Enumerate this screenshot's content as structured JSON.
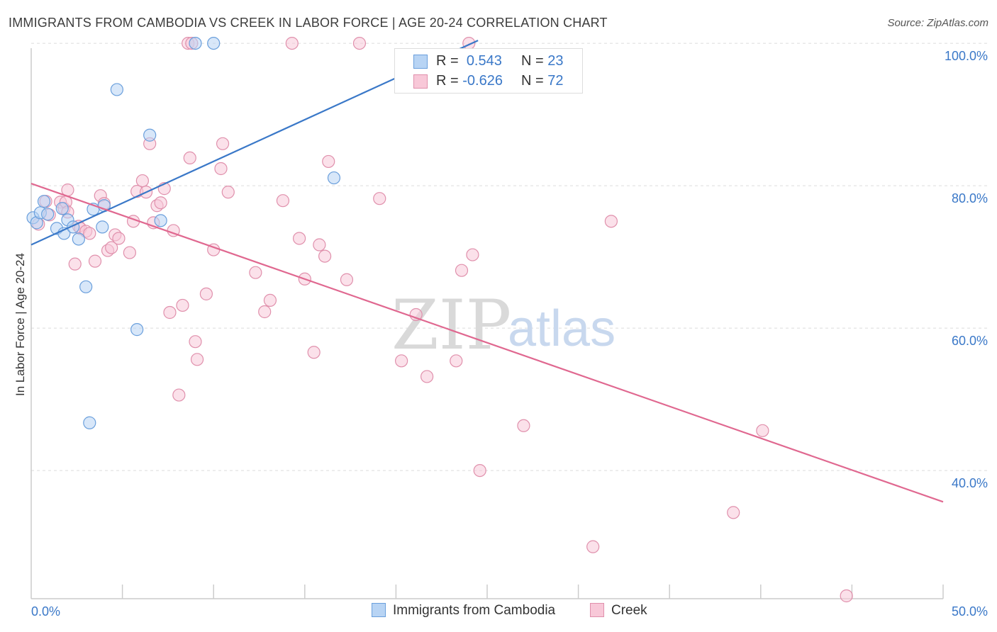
{
  "title": "IMMIGRANTS FROM CAMBODIA VS CREEK IN LABOR FORCE | AGE 20-24 CORRELATION CHART",
  "source": "Source: ZipAtlas.com",
  "watermark": {
    "zip": "ZIP",
    "atlas": "atlas"
  },
  "legend": {
    "r_label": "R =",
    "n_label": "N =",
    "items": [
      {
        "name": "Immigrants from Cambodia",
        "r": "0.543",
        "n": "23",
        "fill": "#b8d4f4",
        "stroke": "#6a9fdc"
      },
      {
        "name": "Creek",
        "r": "-0.626",
        "n": "72",
        "fill": "#f8c8d8",
        "stroke": "#e090ac"
      }
    ]
  },
  "chart_data": {
    "type": "scatter",
    "title": "IMMIGRANTS FROM CAMBODIA VS CREEK IN LABOR FORCE | AGE 20-24 CORRELATION CHART",
    "xlabel": "",
    "ylabel": "In Labor Force | Age 20-24",
    "xlim": [
      0,
      50
    ],
    "ylim": [
      22,
      102
    ],
    "x_tick_labels": [
      "0.0%",
      "50.0%"
    ],
    "y_ticks": [
      {
        "value": 100,
        "label": "100.0%"
      },
      {
        "value": 80,
        "label": "80.0%"
      },
      {
        "value": 60,
        "label": "60.0%"
      },
      {
        "value": 40,
        "label": "40.0%"
      }
    ],
    "series": [
      {
        "name": "Immigrants from Cambodia",
        "color": "#3a78c8",
        "point_fill": "#b8d4f4",
        "point_stroke": "#6a9fdc",
        "trendline": {
          "x": [
            0,
            24.5
          ],
          "y": [
            71.7,
            100.4
          ]
        },
        "points": [
          {
            "x": 0.1,
            "y": 75.5
          },
          {
            "x": 0.3,
            "y": 74.8
          },
          {
            "x": 0.5,
            "y": 76.2
          },
          {
            "x": 0.7,
            "y": 77.8
          },
          {
            "x": 0.9,
            "y": 76.0
          },
          {
            "x": 1.4,
            "y": 74.0
          },
          {
            "x": 1.7,
            "y": 76.8
          },
          {
            "x": 1.8,
            "y": 73.3
          },
          {
            "x": 2.0,
            "y": 75.2
          },
          {
            "x": 2.3,
            "y": 74.2
          },
          {
            "x": 2.6,
            "y": 72.5
          },
          {
            "x": 3.0,
            "y": 65.8
          },
          {
            "x": 3.2,
            "y": 46.7
          },
          {
            "x": 3.4,
            "y": 76.7
          },
          {
            "x": 3.9,
            "y": 74.2
          },
          {
            "x": 4.0,
            "y": 77.2
          },
          {
            "x": 4.7,
            "y": 93.5
          },
          {
            "x": 5.8,
            "y": 59.8
          },
          {
            "x": 6.5,
            "y": 87.1
          },
          {
            "x": 7.1,
            "y": 75.1
          },
          {
            "x": 9.0,
            "y": 100.0
          },
          {
            "x": 10.0,
            "y": 100.0
          },
          {
            "x": 16.6,
            "y": 81.1
          }
        ]
      },
      {
        "name": "Creek",
        "color": "#e06890",
        "point_fill": "#f8c8d8",
        "point_stroke": "#e090ac",
        "trendline": {
          "x": [
            0,
            50
          ],
          "y": [
            80.3,
            35.6
          ]
        },
        "points": [
          {
            "x": 0.4,
            "y": 74.6
          },
          {
            "x": 0.8,
            "y": 77.8
          },
          {
            "x": 1.0,
            "y": 75.9
          },
          {
            "x": 1.6,
            "y": 77.7
          },
          {
            "x": 1.8,
            "y": 76.8
          },
          {
            "x": 1.9,
            "y": 77.7
          },
          {
            "x": 2.0,
            "y": 76.3
          },
          {
            "x": 2.0,
            "y": 79.4
          },
          {
            "x": 2.4,
            "y": 69.0
          },
          {
            "x": 2.6,
            "y": 74.3
          },
          {
            "x": 2.7,
            "y": 74.0
          },
          {
            "x": 3.0,
            "y": 73.6
          },
          {
            "x": 3.2,
            "y": 73.3
          },
          {
            "x": 3.5,
            "y": 69.4
          },
          {
            "x": 3.8,
            "y": 78.6
          },
          {
            "x": 4.0,
            "y": 77.5
          },
          {
            "x": 4.2,
            "y": 70.9
          },
          {
            "x": 4.4,
            "y": 71.3
          },
          {
            "x": 4.6,
            "y": 73.1
          },
          {
            "x": 4.8,
            "y": 72.6
          },
          {
            "x": 5.4,
            "y": 70.6
          },
          {
            "x": 5.6,
            "y": 75.0
          },
          {
            "x": 5.8,
            "y": 79.2
          },
          {
            "x": 6.1,
            "y": 80.7
          },
          {
            "x": 6.3,
            "y": 79.1
          },
          {
            "x": 6.5,
            "y": 85.9
          },
          {
            "x": 6.7,
            "y": 74.8
          },
          {
            "x": 6.9,
            "y": 77.2
          },
          {
            "x": 7.1,
            "y": 77.6
          },
          {
            "x": 7.3,
            "y": 79.6
          },
          {
            "x": 7.6,
            "y": 62.2
          },
          {
            "x": 7.8,
            "y": 73.7
          },
          {
            "x": 8.1,
            "y": 50.6
          },
          {
            "x": 8.3,
            "y": 63.2
          },
          {
            "x": 8.6,
            "y": 100.0
          },
          {
            "x": 8.7,
            "y": 83.9
          },
          {
            "x": 8.8,
            "y": 100.0
          },
          {
            "x": 9.0,
            "y": 58.1
          },
          {
            "x": 9.1,
            "y": 55.6
          },
          {
            "x": 9.6,
            "y": 64.8
          },
          {
            "x": 10.0,
            "y": 71.0
          },
          {
            "x": 10.4,
            "y": 82.4
          },
          {
            "x": 10.5,
            "y": 85.9
          },
          {
            "x": 10.8,
            "y": 79.1
          },
          {
            "x": 12.3,
            "y": 67.8
          },
          {
            "x": 12.8,
            "y": 62.3
          },
          {
            "x": 13.1,
            "y": 63.9
          },
          {
            "x": 13.8,
            "y": 77.9
          },
          {
            "x": 14.3,
            "y": 100.0
          },
          {
            "x": 14.7,
            "y": 72.6
          },
          {
            "x": 15.0,
            "y": 66.9
          },
          {
            "x": 15.5,
            "y": 56.6
          },
          {
            "x": 15.8,
            "y": 71.7
          },
          {
            "x": 16.1,
            "y": 70.1
          },
          {
            "x": 16.3,
            "y": 83.4
          },
          {
            "x": 17.3,
            "y": 66.8
          },
          {
            "x": 18.0,
            "y": 100.0
          },
          {
            "x": 19.1,
            "y": 78.2
          },
          {
            "x": 20.3,
            "y": 55.4
          },
          {
            "x": 21.1,
            "y": 61.9
          },
          {
            "x": 21.7,
            "y": 53.2
          },
          {
            "x": 23.3,
            "y": 55.4
          },
          {
            "x": 23.6,
            "y": 68.1
          },
          {
            "x": 24.2,
            "y": 70.3
          },
          {
            "x": 24.6,
            "y": 40.0
          },
          {
            "x": 27.0,
            "y": 46.3
          },
          {
            "x": 30.8,
            "y": 29.3
          },
          {
            "x": 31.8,
            "y": 75.0
          },
          {
            "x": 38.5,
            "y": 34.1
          },
          {
            "x": 40.1,
            "y": 45.6
          },
          {
            "x": 44.7,
            "y": 22.4
          },
          {
            "x": 24.0,
            "y": 100.0
          }
        ]
      }
    ]
  }
}
